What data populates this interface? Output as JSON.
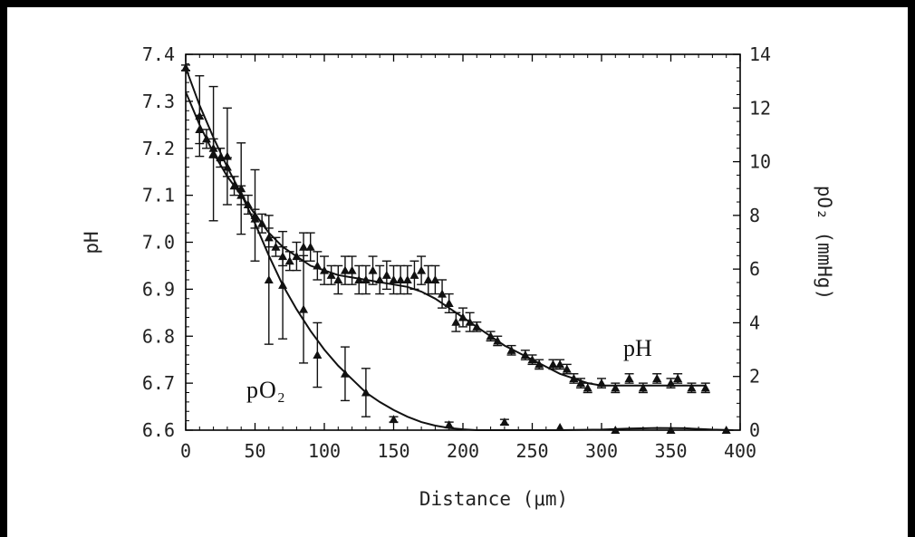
{
  "chart_data": {
    "type": "scatter",
    "xlabel": "Distance (μm)",
    "xlim": [
      0,
      400
    ],
    "xticks": [
      "0",
      "50",
      "100",
      "150",
      "200",
      "250",
      "300",
      "350",
      "400"
    ],
    "ylabel_left": "pH",
    "ylim_left": [
      6.6,
      7.4
    ],
    "yticks_left": [
      "6.6",
      "6.7",
      "6.8",
      "6.9",
      "7.0",
      "7.1",
      "7.2",
      "7.3",
      "7.4"
    ],
    "ylabel_right": "pO₂ (mmHg)",
    "ylim_right": [
      0,
      14
    ],
    "yticks_right": [
      "0",
      "2",
      "4",
      "6",
      "8",
      "10",
      "12",
      "14"
    ],
    "grid": false,
    "annotations": [
      {
        "text": "pH",
        "series": "pH"
      },
      {
        "text": "pO₂",
        "series": "pO2"
      }
    ],
    "series": [
      {
        "name": "pH",
        "axis": "left",
        "points": [
          [
            10,
            7.24,
            0.03
          ],
          [
            15,
            7.22,
            0.02
          ],
          [
            20,
            7.2,
            0.02
          ],
          [
            25,
            7.18,
            0.02
          ],
          [
            30,
            7.16,
            0.02
          ],
          [
            35,
            7.12,
            0.02
          ],
          [
            40,
            7.1,
            0.02
          ],
          [
            45,
            7.08,
            0.02
          ],
          [
            50,
            7.05,
            0.02
          ],
          [
            55,
            7.04,
            0.02
          ],
          [
            60,
            7.01,
            0.02
          ],
          [
            65,
            6.99,
            0.02
          ],
          [
            70,
            6.97,
            0.02
          ],
          [
            75,
            6.96,
            0.02
          ],
          [
            80,
            6.97,
            0.03
          ],
          [
            85,
            6.99,
            0.03
          ],
          [
            90,
            6.99,
            0.03
          ],
          [
            95,
            6.95,
            0.03
          ],
          [
            100,
            6.94,
            0.03
          ],
          [
            105,
            6.93,
            0.02
          ],
          [
            110,
            6.92,
            0.03
          ],
          [
            115,
            6.94,
            0.03
          ],
          [
            120,
            6.94,
            0.03
          ],
          [
            125,
            6.92,
            0.03
          ],
          [
            130,
            6.92,
            0.03
          ],
          [
            135,
            6.94,
            0.03
          ],
          [
            140,
            6.92,
            0.03
          ],
          [
            145,
            6.93,
            0.03
          ],
          [
            150,
            6.92,
            0.03
          ],
          [
            155,
            6.92,
            0.03
          ],
          [
            160,
            6.92,
            0.03
          ],
          [
            165,
            6.93,
            0.03
          ],
          [
            170,
            6.94,
            0.03
          ],
          [
            175,
            6.92,
            0.03
          ],
          [
            180,
            6.92,
            0.03
          ],
          [
            185,
            6.89,
            0.03
          ],
          [
            190,
            6.87,
            0.02
          ],
          [
            195,
            6.83,
            0.02
          ],
          [
            200,
            6.84,
            0.02
          ],
          [
            205,
            6.83,
            0.02
          ],
          [
            210,
            6.82,
            0.01
          ],
          [
            220,
            6.8,
            0.01
          ],
          [
            225,
            6.79,
            0.01
          ],
          [
            235,
            6.77,
            0.01
          ],
          [
            245,
            6.76,
            0.01
          ],
          [
            250,
            6.75,
            0.01
          ],
          [
            255,
            6.74,
            0.01
          ],
          [
            265,
            6.74,
            0.01
          ],
          [
            270,
            6.74,
            0.01
          ],
          [
            275,
            6.73,
            0.01
          ],
          [
            280,
            6.71,
            0.01
          ],
          [
            285,
            6.7,
            0.01
          ],
          [
            290,
            6.69,
            0.01
          ],
          [
            300,
            6.7,
            0.01
          ],
          [
            310,
            6.69,
            0.01
          ],
          [
            320,
            6.71,
            0.01
          ],
          [
            330,
            6.69,
            0.01
          ],
          [
            340,
            6.71,
            0.01
          ],
          [
            350,
            6.7,
            0.01
          ],
          [
            355,
            6.71,
            0.01
          ],
          [
            365,
            6.69,
            0.01
          ],
          [
            375,
            6.69,
            0.01
          ]
        ],
        "fit": [
          [
            0,
            7.32
          ],
          [
            10,
            7.25
          ],
          [
            20,
            7.19
          ],
          [
            30,
            7.14
          ],
          [
            40,
            7.1
          ],
          [
            50,
            7.06
          ],
          [
            60,
            7.02
          ],
          [
            70,
            6.99
          ],
          [
            80,
            6.97
          ],
          [
            90,
            6.95
          ],
          [
            100,
            6.94
          ],
          [
            110,
            6.93
          ],
          [
            120,
            6.925
          ],
          [
            130,
            6.92
          ],
          [
            140,
            6.915
          ],
          [
            150,
            6.91
          ],
          [
            160,
            6.905
          ],
          [
            170,
            6.895
          ],
          [
            180,
            6.88
          ],
          [
            190,
            6.86
          ],
          [
            200,
            6.84
          ],
          [
            210,
            6.82
          ],
          [
            220,
            6.8
          ],
          [
            230,
            6.78
          ],
          [
            240,
            6.765
          ],
          [
            250,
            6.75
          ],
          [
            260,
            6.735
          ],
          [
            270,
            6.72
          ],
          [
            280,
            6.71
          ],
          [
            290,
            6.7
          ],
          [
            300,
            6.695
          ],
          [
            320,
            6.695
          ],
          [
            340,
            6.695
          ],
          [
            360,
            6.695
          ],
          [
            375,
            6.695
          ]
        ]
      },
      {
        "name": "pO2",
        "axis": "right",
        "points": [
          [
            0,
            13.5,
            0.1
          ],
          [
            10,
            11.7,
            1.5
          ],
          [
            20,
            10.3,
            2.5
          ],
          [
            30,
            10.2,
            1.8
          ],
          [
            40,
            9.0,
            1.7
          ],
          [
            50,
            8.0,
            1.7
          ],
          [
            60,
            5.6,
            2.4
          ],
          [
            70,
            5.4,
            2.0
          ],
          [
            85,
            4.5,
            2.0
          ],
          [
            95,
            2.8,
            1.2
          ],
          [
            115,
            2.1,
            1.0
          ],
          [
            130,
            1.4,
            0.9
          ],
          [
            150,
            0.4,
            0.1
          ],
          [
            190,
            0.2,
            0.1
          ],
          [
            230,
            0.3,
            0.1
          ],
          [
            270,
            0.1,
            0.05
          ],
          [
            310,
            0.0,
            0.05
          ],
          [
            350,
            0.0,
            0.05
          ],
          [
            390,
            -0.1,
            0.05
          ]
        ],
        "fit": [
          [
            0,
            13.5
          ],
          [
            10,
            12.1
          ],
          [
            20,
            10.9
          ],
          [
            30,
            9.8
          ],
          [
            40,
            8.8
          ],
          [
            50,
            7.7
          ],
          [
            60,
            6.5
          ],
          [
            70,
            5.4
          ],
          [
            80,
            4.5
          ],
          [
            90,
            3.7
          ],
          [
            100,
            3.0
          ],
          [
            110,
            2.4
          ],
          [
            120,
            1.9
          ],
          [
            130,
            1.4
          ],
          [
            140,
            1.05
          ],
          [
            150,
            0.75
          ],
          [
            160,
            0.5
          ],
          [
            170,
            0.3
          ],
          [
            180,
            0.17
          ],
          [
            190,
            0.08
          ],
          [
            200,
            0.03
          ],
          [
            210,
            0.0
          ],
          [
            240,
            -0.03
          ],
          [
            270,
            -0.02
          ],
          [
            300,
            0.02
          ],
          [
            320,
            0.06
          ],
          [
            340,
            0.08
          ],
          [
            360,
            0.07
          ],
          [
            380,
            0.02
          ],
          [
            395,
            -0.02
          ]
        ]
      }
    ]
  }
}
